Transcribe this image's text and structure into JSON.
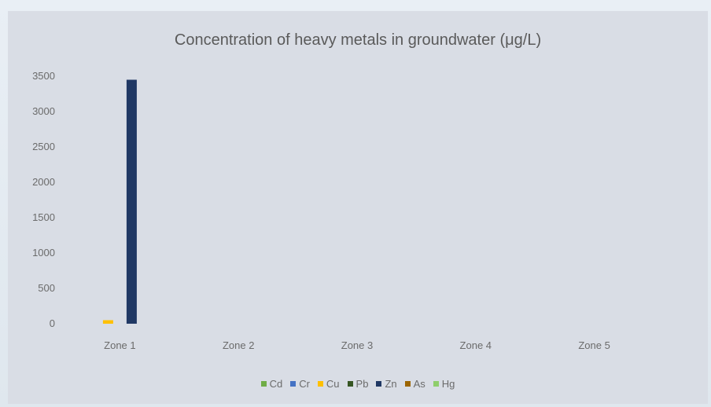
{
  "chart_data": {
    "type": "bar",
    "title": "Concentration of heavy metals in groundwater (μg/L)",
    "categories": [
      "Zone 1",
      "Zone 2",
      "Zone 3",
      "Zone 4",
      "Zone 5"
    ],
    "ylim": [
      0,
      3500
    ],
    "yticks": [
      0,
      500,
      1000,
      1500,
      2000,
      2500,
      3000,
      3500
    ],
    "grid": false,
    "legend_position": "bottom",
    "series": [
      {
        "name": "Cd",
        "color": "#70ad47",
        "values": [
          0,
          0,
          0,
          0,
          0
        ]
      },
      {
        "name": "Cr",
        "color": "#4472c4",
        "values": [
          0,
          0,
          0,
          0,
          0
        ]
      },
      {
        "name": "Cu",
        "color": "#ffc000",
        "values": [
          50,
          0,
          0,
          0,
          0
        ]
      },
      {
        "name": "Pb",
        "color": "#375623",
        "values": [
          0,
          0,
          0,
          0,
          0
        ]
      },
      {
        "name": "Zn",
        "color": "#203864",
        "values": [
          3450,
          0,
          0,
          0,
          0
        ]
      },
      {
        "name": "As",
        "color": "#9c6500",
        "values": [
          0,
          0,
          0,
          0,
          0
        ]
      },
      {
        "name": "Hg",
        "color": "#8fce6c",
        "values": [
          0,
          0,
          0,
          0,
          0
        ]
      }
    ]
  }
}
